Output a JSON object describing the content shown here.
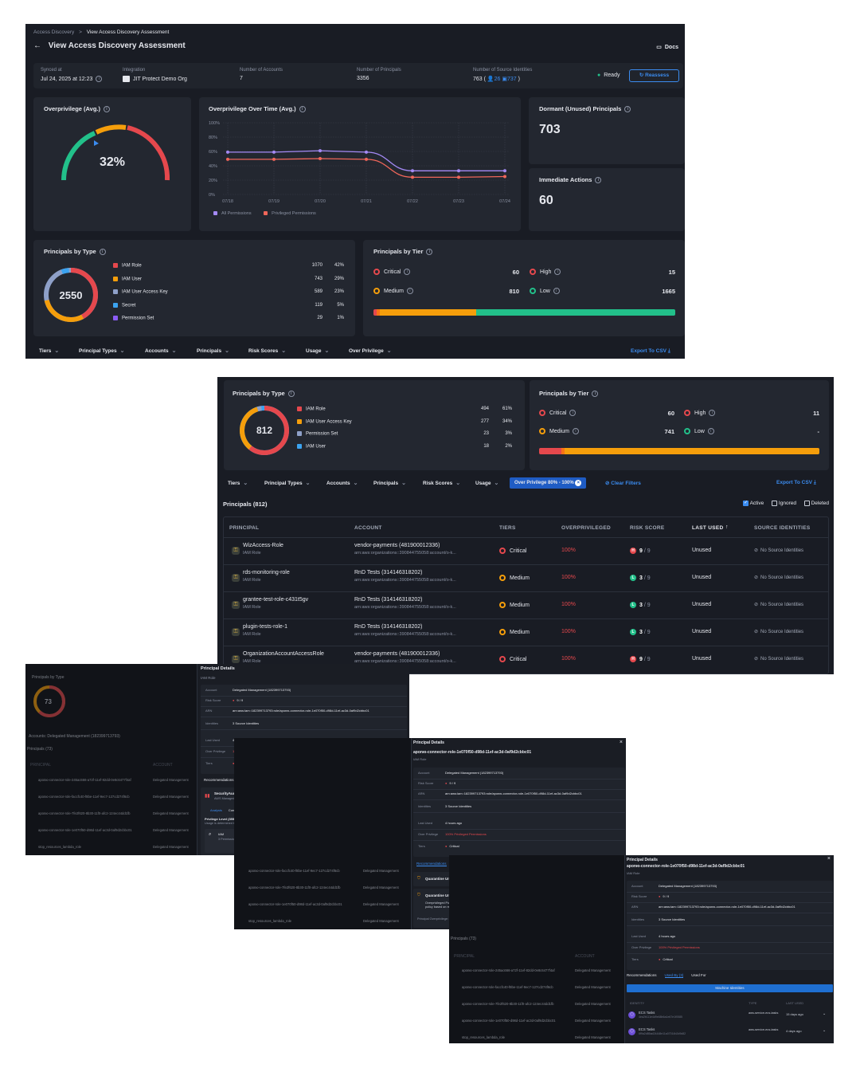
{
  "colors": {
    "critical": "#e5484d",
    "high": "#e5484d",
    "medium": "#f59e0b",
    "low": "#22c08a",
    "accent": "#3b8cf0",
    "iam_role": "#e5484d",
    "iam_user": "#f59e0b",
    "access_key": "#8ea0c8",
    "secret": "#3ba3f0",
    "permission_set": "#8b5cf6"
  },
  "s1": {
    "breadcrumb": {
      "root": "Access Discovery",
      "sep": ">",
      "current": "View Access Discovery Assessment"
    },
    "title": "View Access Discovery Assessment",
    "docs": "Docs",
    "synced": {
      "label": "Synced at",
      "value": "Jul 24, 2025 at 12:23"
    },
    "integration": {
      "label": "Integration",
      "value": "JIT Protect Demo Org"
    },
    "accounts": {
      "label": "Number of Accounts",
      "value": "7"
    },
    "principals": {
      "label": "Number of Principals",
      "value": "3356"
    },
    "source": {
      "label": "Number of Source Identities",
      "value": "763",
      "users": "26",
      "machines": "737"
    },
    "status": "Ready",
    "reassess": "Reassess",
    "overprivilege": {
      "title": "Overprivilege (Avg.)",
      "value": "32%",
      "fraction": 0.32
    },
    "over_time": {
      "title": "Overprivilege Over Time (Avg.)"
    },
    "dormant": {
      "title": "Dormant (Unused) Principals",
      "value": "703"
    },
    "immediate": {
      "title": "Immediate Actions",
      "value": "60"
    },
    "by_type": {
      "title": "Principals by Type",
      "total": "2550",
      "rows": [
        {
          "label": "IAM Role",
          "count": "1070",
          "pct": "42%",
          "color": "#e5484d"
        },
        {
          "label": "IAM User",
          "count": "743",
          "pct": "29%",
          "color": "#f59e0b"
        },
        {
          "label": "IAM User Access Key",
          "count": "589",
          "pct": "23%",
          "color": "#8ea0c8"
        },
        {
          "label": "Secret",
          "count": "119",
          "pct": "5%",
          "color": "#3ba3f0"
        },
        {
          "label": "Permission Set",
          "count": "29",
          "pct": "1%",
          "color": "#8b5cf6"
        }
      ]
    },
    "by_tier": {
      "title": "Principals by Tier",
      "critical": {
        "label": "Critical",
        "value": "60"
      },
      "high": {
        "label": "High",
        "value": "15"
      },
      "medium": {
        "label": "Medium",
        "value": "810"
      },
      "low": {
        "label": "Low",
        "value": "1665"
      }
    },
    "filters": [
      "Tiers",
      "Principal Types",
      "Accounts",
      "Principals",
      "Risk Scores",
      "Usage",
      "Over Privilege"
    ],
    "export": "Export To CSV"
  },
  "chart_data": {
    "type": "line",
    "title": "Overprivilege Over Time (Avg.)",
    "categories": [
      "07/18",
      "07/19",
      "07/20",
      "07/21",
      "07/22",
      "07/23",
      "07/24"
    ],
    "ylim": [
      0,
      100
    ],
    "yticks": [
      "100%",
      "80%",
      "60%",
      "40%",
      "20%",
      "0%"
    ],
    "series": [
      {
        "name": "All Permissions",
        "color": "#a48af5",
        "values": [
          59,
          59,
          61,
          59,
          33,
          33,
          33
        ]
      },
      {
        "name": "Privileged Permissions",
        "color": "#f0665a",
        "values": [
          49,
          49,
          50,
          49,
          24,
          24,
          25
        ]
      }
    ]
  },
  "s2": {
    "by_type": {
      "title": "Principals by Type",
      "total": "812",
      "rows": [
        {
          "label": "IAM Role",
          "count": "494",
          "pct": "61%",
          "color": "#e5484d"
        },
        {
          "label": "IAM User Access Key",
          "count": "277",
          "pct": "34%",
          "color": "#f59e0b"
        },
        {
          "label": "Permission Set",
          "count": "23",
          "pct": "3%",
          "color": "#8ea0c8"
        },
        {
          "label": "IAM User",
          "count": "18",
          "pct": "2%",
          "color": "#3ba3f0"
        }
      ]
    },
    "by_tier": {
      "title": "Principals by Tier",
      "critical": {
        "label": "Critical",
        "value": "60"
      },
      "high": {
        "label": "High",
        "value": "11"
      },
      "medium": {
        "label": "Medium",
        "value": "741"
      },
      "low": {
        "label": "Low",
        "value": "-"
      }
    },
    "filters": [
      "Tiers",
      "Principal Types",
      "Accounts",
      "Principals",
      "Risk Scores",
      "Usage"
    ],
    "active_filter": "Over Privilege 80% - 100%",
    "clear": "Clear Filters",
    "export": "Export To CSV",
    "count_label": "Principals (812)",
    "checks": {
      "active": "Active",
      "ignored": "Ignored",
      "deleted": "Deleted"
    },
    "headers": [
      "PRINCIPAL",
      "ACCOUNT",
      "TIERS",
      "OVERPRIVILEGED",
      "RISK SCORE",
      "LAST USED",
      "SOURCE IDENTITIES"
    ],
    "rows": [
      {
        "name": "WizAccess-Role",
        "type": "IAM Role",
        "account": "vendor-payments (481900012336)",
        "arn": "arn:aws:organizations::390844755058:account/o-k...",
        "tier": "Critical",
        "tier_color": "#e5484d",
        "over": "100%",
        "risk": "9",
        "risk_letter": "H",
        "risk_color": "#e5484d",
        "of": "/ 9",
        "last": "Unused",
        "source": "No Source Identities"
      },
      {
        "name": "rds-monitoring-role",
        "type": "IAM Role",
        "account": "RnD Tests (314146318202)",
        "arn": "arn:aws:organizations::390844755058:account/o-k...",
        "tier": "Medium",
        "tier_color": "#f59e0b",
        "over": "100%",
        "risk": "3",
        "risk_letter": "L",
        "risk_color": "#22c08a",
        "of": "/ 9",
        "last": "Unused",
        "source": "No Source Identities"
      },
      {
        "name": "grantee-test-role-c431t5gv",
        "type": "IAM Role",
        "account": "RnD Tests (314146318202)",
        "arn": "arn:aws:organizations::390844755058:account/o-k...",
        "tier": "Medium",
        "tier_color": "#f59e0b",
        "over": "100%",
        "risk": "3",
        "risk_letter": "L",
        "risk_color": "#22c08a",
        "of": "/ 9",
        "last": "Unused",
        "source": "No Source Identities"
      },
      {
        "name": "plugin-tests-role-1",
        "type": "IAM Role",
        "account": "RnD Tests (314146318202)",
        "arn": "arn:aws:organizations::390844755058:account/o-k...",
        "tier": "Medium",
        "tier_color": "#f59e0b",
        "over": "100%",
        "risk": "3",
        "risk_letter": "L",
        "risk_color": "#22c08a",
        "of": "/ 9",
        "last": "Unused",
        "source": "No Source Identities"
      },
      {
        "name": "OrganizationAccountAccessRole",
        "type": "IAM Role",
        "account": "vendor-payments (481900012336)",
        "arn": "arn:aws:organizations::390844755058:account/o-k...",
        "tier": "Critical",
        "tier_color": "#e5484d",
        "over": "100%",
        "risk": "9",
        "risk_letter": "H",
        "risk_color": "#e5484d",
        "of": "/ 9",
        "last": "Unused",
        "source": "No Source Identities"
      }
    ]
  },
  "s3": {
    "panel_title": "Principal Details",
    "subtitle": "IAM Role",
    "fields": [
      {
        "k": "Account",
        "v": "Delegated Management (182399713793)"
      },
      {
        "k": "Risk Score",
        "v": "9 / 9"
      },
      {
        "k": "ARN",
        "v": "arn:aws:iam::182399713793:role/aponю-connector-role-1e070f50-d98d-11ef-ac3d-0af9d2cbbc01"
      },
      {
        "k": "Identities",
        "v": "3 Source Identities"
      },
      {
        "k": "Last Used",
        "v": "4 hours ago"
      },
      {
        "k": "Over Privilege",
        "v": "100% Privileged Permissions"
      },
      {
        "k": "Tiers",
        "v": "Critical"
      }
    ],
    "tabs": [
      "Recommendations",
      "Used By (3)",
      "Used For"
    ],
    "policy": "SecurityAudit",
    "policy_type": "AWS Managed Policy",
    "over_label": "Over privilege",
    "over_value": "100%",
    "subtabs": [
      "Analysis",
      "Current policy"
    ],
    "priv_level": "Privilege Level (3550 Permissions)",
    "priv_note": "Usage is determined based on observed activity in the last 90 days",
    "right_size": "Right size",
    "iam_label": "IAM",
    "unused": "0 Unused",
    "perms": "3 Permissions",
    "bg_title": "Principals by Type",
    "bg_total": "73",
    "bg_count": "Principals (73)",
    "bg_filter": "Accounts: Delegated Management (182399713793)",
    "bg_rows": [
      "aponю-connector-role-245ac666-a72f-11ef-82dd-0e8c6477f4af",
      "aponю-connector-role-faccfc40-f8be-11ef-9ec7-127cd274f6cb",
      "aponю-connector-role-7fe2f620-8b30-11f0-afc2-124ec44dd1fb",
      "aponю-connector-role-1e070f50-d98d-11ef-ac3d-0af9d2cbbc01",
      "stop_resources_lambda_role"
    ]
  },
  "s4": {
    "panel_title": "Principal Details",
    "name": "aponю-connector-role-1e070f50-d98d-11ef-ac3d-0af9d2cbbc01",
    "subtitle": "IAM Role",
    "fields": [
      {
        "k": "Account",
        "v": "Delegated Management (182399713793)"
      },
      {
        "k": "Risk Score",
        "v": "9 / 9"
      },
      {
        "k": "ARN",
        "v": "arn:aws:iam::182399713793:role/aponю-connector-role-1e070f50-d98d-11ef-ac3d-0af9d2cbbc01"
      },
      {
        "k": "Identities",
        "v": "3 Source Identities"
      },
      {
        "k": "Last Used",
        "v": "4 hours ago"
      },
      {
        "k": "Over Privilege",
        "v": "100% Privileged Permissions"
      },
      {
        "k": "Tiers",
        "v": "Critical"
      }
    ],
    "tabs": [
      "Recommendations",
      "Used By (3)",
      "Used For"
    ],
    "rec1": "Quarantine Unused Privileged Actions",
    "rec2": "Quarantine Unused Actions (SecurityAudit)",
    "rec2_desc": "Overprivileged Policy Detected. Policy SecurityAudit includes permissions not used by the principal. Right-size the policy based on recent activity to enforce least privilege and reduce exposure.",
    "projected": "Principal Overprivilege: 100% → After fix: 72%",
    "fix": "How To Fix"
  },
  "s5": {
    "panel_title": "Principal Details",
    "name": "aponю-connector-role-1e070f50-d98d-11ef-ac3d-0af9d2cbbc01",
    "subtitle": "IAM Role",
    "fields": [
      {
        "k": "Account",
        "v": "Delegated Management (182399713793)"
      },
      {
        "k": "Risk Score",
        "v": "9 / 9"
      },
      {
        "k": "ARN",
        "v": "arn:aws:iam::182399713793:role/aponю-connector-role-1e070f50-d98d-11ef-ac3d-0af9d2cbbc01"
      },
      {
        "k": "Identities",
        "v": "3 Source Identities"
      },
      {
        "k": "Last Used",
        "v": "4 hours ago"
      },
      {
        "k": "Over Privilege",
        "v": "100% Privileged Permissions"
      },
      {
        "k": "Tiers",
        "v": "Critical"
      }
    ],
    "tabs": [
      "Recommendations",
      "Used By (3)",
      "Used For"
    ],
    "machine": "Machine Identities",
    "headers": [
      "IDENTITY",
      "TYPE",
      "LAST USED"
    ],
    "ids": [
      {
        "name": "ECS Tasks",
        "sub": "4ea2b111e4d9e68b6a1e67e1f0585",
        "type": "aws-service-ecs-tasks",
        "last": "15 days ago"
      },
      {
        "name": "ECS Tasks",
        "sub": "6f9a2d85ad24448e11a07014b2d9d82",
        "type": "aws-service-ecs-tasks",
        "last": "4 days ago"
      }
    ],
    "bg_count": "Principals (73)",
    "bg_header": [
      "PRINCIPAL",
      "ACCOUNT"
    ],
    "bg_rows": [
      "aponю-connector-role-245ac666-a72f-11ef-82dd-0e8c6477f4af",
      "aponю-connector-role-faccfc40-f8be-11ef-9ec7-127cd274f6cb",
      "aponю-connector-role-7fe2f620-8b30-11f0-afc2-124ec44dd1fb",
      "aponю-connector-role-1e070f50-d98d-11ef-ac3d-0af9d2cbbc01",
      "stop_resources_lambda_role"
    ],
    "bg_account": "Delegated Management"
  }
}
